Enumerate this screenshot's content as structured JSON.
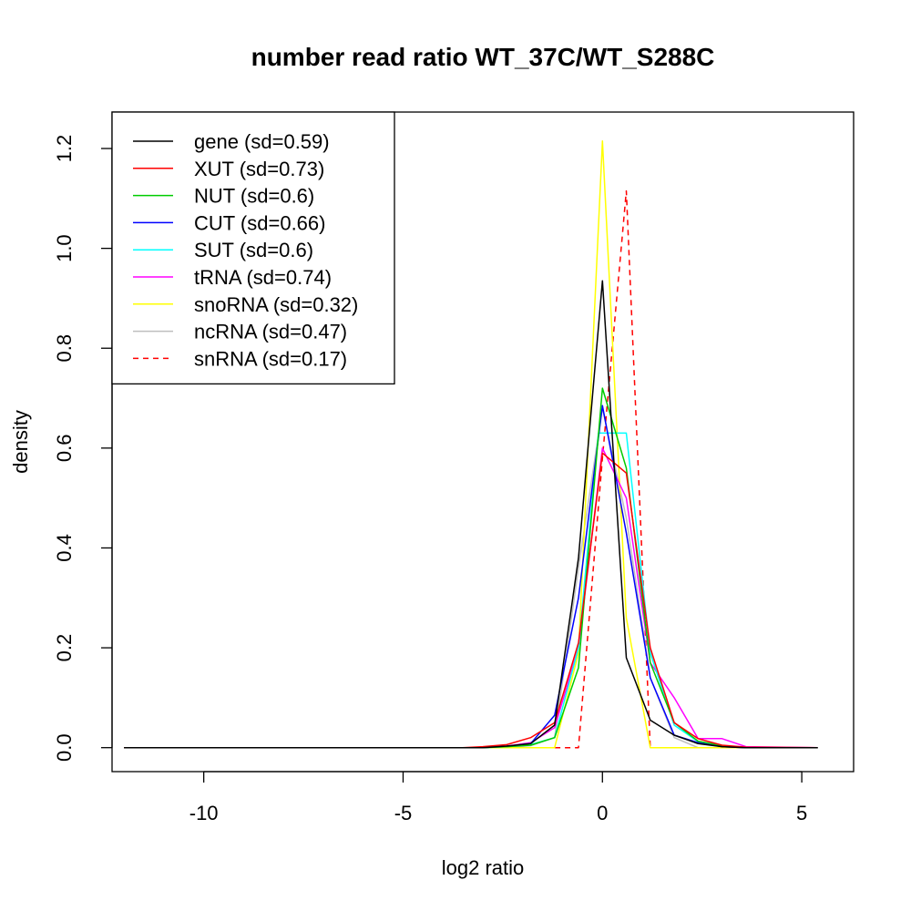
{
  "chart_data": {
    "type": "line",
    "title": "number read ratio WT_37C/WT_S288C",
    "xlabel": "log2 ratio",
    "ylabel": "density",
    "xlim": [
      -12.3,
      6.3
    ],
    "ylim": [
      -0.048,
      1.273
    ],
    "x_ticks": [
      -10,
      -5,
      0,
      5
    ],
    "x_tick_labels": [
      "-10",
      "-5",
      "0",
      "5"
    ],
    "y_ticks": [
      0.0,
      0.2,
      0.4,
      0.6,
      0.8,
      1.0,
      1.2
    ],
    "y_tick_labels": [
      "0.0",
      "0.2",
      "0.4",
      "0.6",
      "0.8",
      "1.0",
      "1.2"
    ],
    "legend_position": "top-left",
    "series": [
      {
        "name": "gene (sd=0.59)",
        "color": "#000000",
        "dash": "solid",
        "x": [
          -12,
          -3.0,
          -2.4,
          -1.8,
          -1.2,
          -0.6,
          0,
          0.6,
          1.2,
          1.8,
          2.4,
          3.0,
          3.6,
          5.4
        ],
        "y": [
          0,
          0,
          0.003,
          0.008,
          0.045,
          0.38,
          0.935,
          0.18,
          0.055,
          0.025,
          0.008,
          0.002,
          0,
          0
        ]
      },
      {
        "name": "XUT (sd=0.73)",
        "color": "#ff0000",
        "dash": "solid",
        "x": [
          -12,
          -3.5,
          -3.0,
          -2.4,
          -1.8,
          -1.2,
          -0.6,
          0,
          0.6,
          1.2,
          1.8,
          2.4,
          3.0,
          3.6,
          5.4
        ],
        "y": [
          0,
          0,
          0.002,
          0.006,
          0.02,
          0.05,
          0.21,
          0.59,
          0.55,
          0.2,
          0.05,
          0.018,
          0.005,
          0.001,
          0
        ]
      },
      {
        "name": "NUT (sd=0.6)",
        "color": "#00cc00",
        "dash": "solid",
        "x": [
          -12,
          -3.0,
          -2.4,
          -1.8,
          -1.2,
          -0.6,
          0,
          0.6,
          1.2,
          1.8,
          2.4,
          3.0,
          3.6,
          5.4
        ],
        "y": [
          0,
          0,
          0.002,
          0.005,
          0.02,
          0.16,
          0.72,
          0.56,
          0.17,
          0.05,
          0.013,
          0.004,
          0,
          0
        ]
      },
      {
        "name": "CUT (sd=0.66)",
        "color": "#0000ff",
        "dash": "solid",
        "x": [
          -12,
          -3.0,
          -2.4,
          -1.8,
          -1.2,
          -0.6,
          0,
          0.6,
          1.2,
          1.8,
          2.4,
          3.0,
          3.6,
          5.4
        ],
        "y": [
          0,
          0,
          0.003,
          0.008,
          0.065,
          0.3,
          0.685,
          0.43,
          0.14,
          0.025,
          0.01,
          0.002,
          0,
          0
        ]
      },
      {
        "name": "SUT (sd=0.6)",
        "color": "#00ffff",
        "dash": "solid",
        "x": [
          -12,
          -3.0,
          -2.4,
          -1.8,
          -1.2,
          -0.6,
          -0.1,
          0.1,
          0.6,
          1.2,
          1.8,
          2.4,
          3.0,
          3.6,
          5.4
        ],
        "y": [
          0,
          0,
          0.002,
          0.006,
          0.02,
          0.2,
          0.63,
          0.63,
          0.63,
          0.19,
          0.045,
          0.012,
          0.004,
          0,
          0
        ]
      },
      {
        "name": "tRNA (sd=0.74)",
        "color": "#ff00ff",
        "dash": "solid",
        "x": [
          -12,
          -3.0,
          -2.4,
          -1.8,
          -1.2,
          -0.6,
          0,
          0.6,
          1.2,
          1.8,
          2.4,
          3.0,
          3.6,
          5.4
        ],
        "y": [
          0,
          0,
          0.003,
          0.01,
          0.04,
          0.2,
          0.6,
          0.5,
          0.17,
          0.1,
          0.018,
          0.018,
          0.002,
          0
        ]
      },
      {
        "name": "snoRNA (sd=0.32)",
        "color": "#ffff00",
        "dash": "solid",
        "x": [
          -12,
          -1.2,
          -0.6,
          0,
          0.6,
          1.2,
          5.4
        ],
        "y": [
          0,
          0,
          0.19,
          1.215,
          0.26,
          0,
          0
        ]
      },
      {
        "name": "ncRNA (sd=0.47)",
        "color": "#bebebe",
        "dash": "solid",
        "x": [
          -12,
          -2.4,
          -1.8,
          -1.2,
          -0.6,
          0,
          0.6,
          1.2,
          1.8,
          2.4,
          5.4
        ],
        "y": [
          0,
          0,
          0.004,
          0.02,
          0.36,
          0.68,
          0.46,
          0.14,
          0.02,
          0,
          0
        ]
      },
      {
        "name": "snRNA (sd=0.17)",
        "color": "#ff0000",
        "dash": "dashed",
        "x": [
          -12,
          -0.6,
          0,
          0.6,
          1.2,
          5.4
        ],
        "y": [
          0,
          0,
          0.58,
          1.115,
          0,
          0
        ]
      }
    ]
  }
}
